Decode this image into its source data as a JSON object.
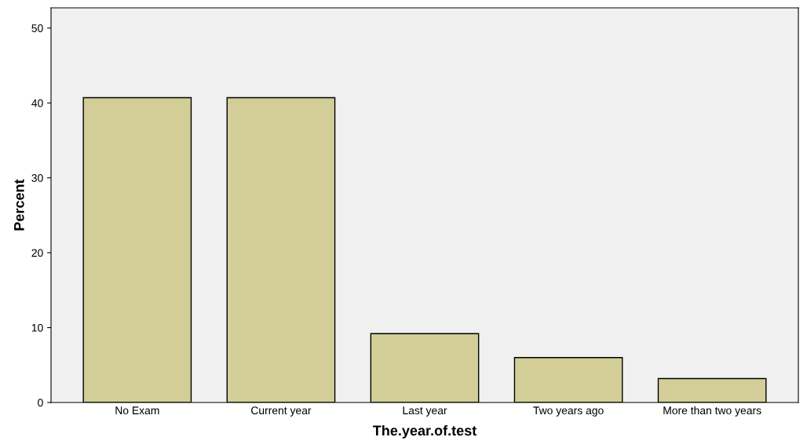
{
  "chart_data": {
    "type": "bar",
    "xlabel": "The.year.of.test",
    "ylabel": "Percent",
    "categories": [
      "No Exam",
      "Current year",
      "Last year",
      "Two years ago",
      "More than two years"
    ],
    "values": [
      40.7,
      40.7,
      9.2,
      6.0,
      3.2
    ],
    "color": "#d3ce97",
    "ylim": [
      0,
      52.7
    ],
    "yticks": [
      0,
      10,
      20,
      30,
      40,
      50
    ],
    "grid": false
  }
}
